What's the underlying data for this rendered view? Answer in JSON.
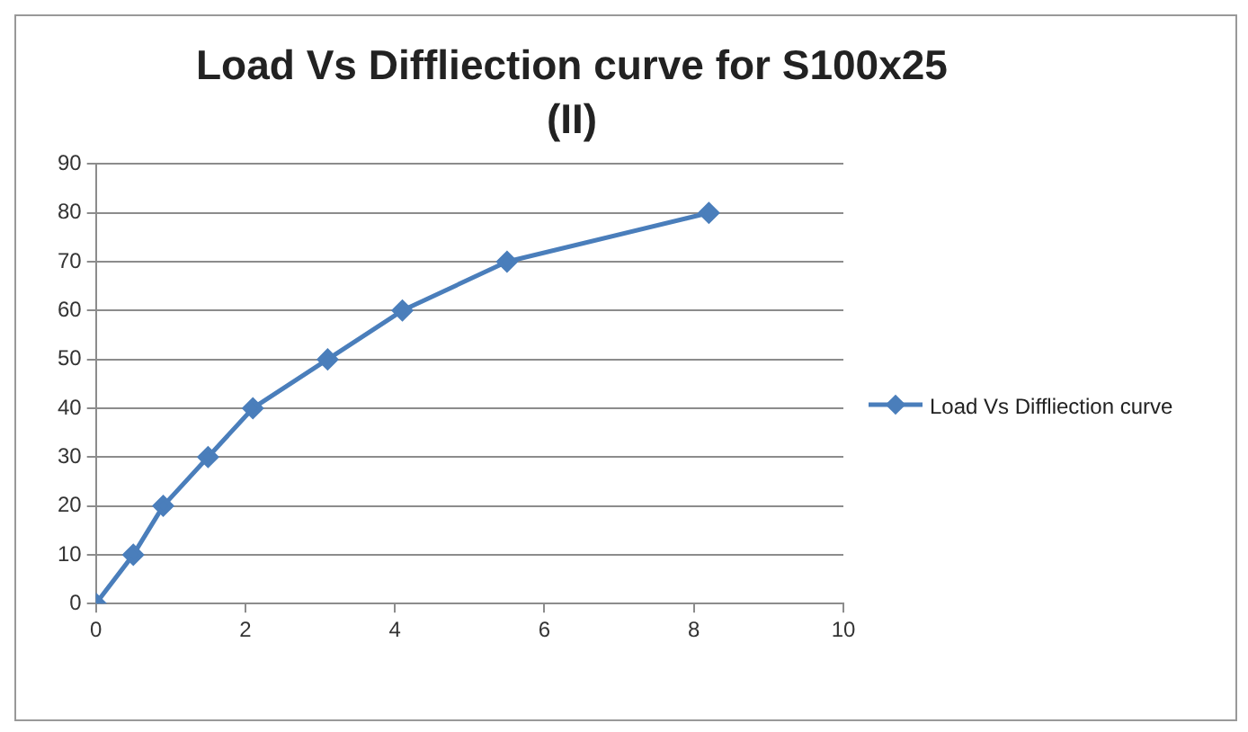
{
  "chart_data": {
    "type": "line",
    "title": "Load Vs Diffliection curve for S100x25 (II)",
    "x": [
      0,
      0.5,
      0.9,
      1.5,
      2.1,
      3.1,
      4.1,
      5.5,
      8.2
    ],
    "series": [
      {
        "name": "Load Vs Diffliection curve",
        "color": "#4a7ebb",
        "values": [
          0,
          10,
          20,
          30,
          40,
          50,
          60,
          70,
          80
        ]
      }
    ],
    "xlim": [
      0,
      10
    ],
    "xticks": [
      0,
      2,
      4,
      6,
      8,
      10
    ],
    "ylim": [
      0,
      90
    ],
    "yticks": [
      0,
      10,
      20,
      30,
      40,
      50,
      60,
      70,
      80,
      90
    ],
    "grid": "y",
    "legend": "right",
    "marker": "diamond",
    "line_style": "solid"
  }
}
